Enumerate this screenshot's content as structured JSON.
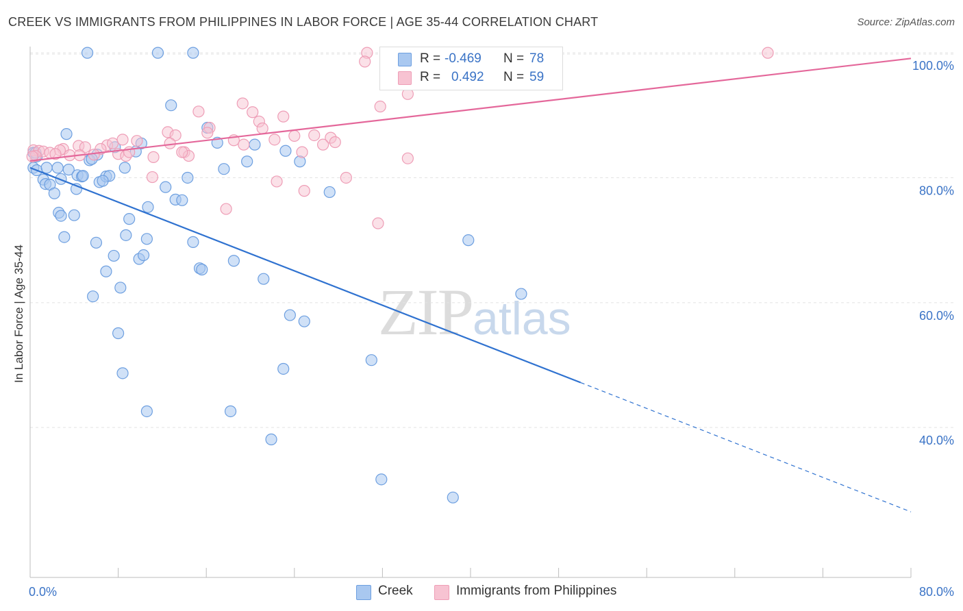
{
  "header": {
    "title": "CREEK VS IMMIGRANTS FROM PHILIPPINES IN LABOR FORCE | AGE 35-44 CORRELATION CHART",
    "source": "Source: ZipAtlas.com"
  },
  "watermark": {
    "zip": "ZIP",
    "atlas": "atlas"
  },
  "legend": {
    "creek": {
      "r_label": "R =",
      "r_value": "-0.469",
      "n_label": "N =",
      "n_value": "78"
    },
    "philippines": {
      "r_label": "R =",
      "r_value": "0.492",
      "n_label": "N =",
      "n_value": "59"
    }
  },
  "colors": {
    "creek_fill": "#a9c8f0",
    "creek_stroke": "#6d9fe0",
    "creek_line": "#2f72d0",
    "phil_fill": "#f7c3d2",
    "phil_stroke": "#ee9db6",
    "phil_line": "#e4679a",
    "axis_text": "#3a73c6",
    "grid": "#e3e3e3"
  },
  "chart_data": {
    "type": "scatter",
    "title": "CREEK VS IMMIGRANTS FROM PHILIPPINES IN LABOR FORCE | AGE 35-44 CORRELATION CHART",
    "xlabel": "",
    "ylabel": "In Labor Force | Age 35-44",
    "xlim": [
      0,
      80
    ],
    "ylim": [
      16,
      101
    ],
    "x_ticks": [
      0,
      80
    ],
    "x_tick_labels": [
      "0.0%",
      "80.0%"
    ],
    "y_ticks": [
      40,
      60,
      80,
      100
    ],
    "y_tick_labels": [
      "40.0%",
      "60.0%",
      "80.0%",
      "100.0%"
    ],
    "grid": true,
    "legend_position": "top-center",
    "series": [
      {
        "name": "Creek",
        "r": -0.469,
        "n": 78,
        "trend": {
          "x0": 0,
          "y0": 81.6,
          "x1": 50,
          "y1": 47.2,
          "x_dash_end": 80,
          "y_dash_end": 26.5
        },
        "points": [
          [
            5.2,
            100
          ],
          [
            11.6,
            100
          ],
          [
            14.8,
            100
          ],
          [
            12.8,
            91.6
          ],
          [
            3.3,
            87.0
          ],
          [
            0.3,
            84.0
          ],
          [
            0.6,
            83.4
          ],
          [
            0.3,
            81.6
          ],
          [
            0.6,
            81.2
          ],
          [
            1.5,
            81.6
          ],
          [
            3.5,
            81.3
          ],
          [
            2.5,
            81.6
          ],
          [
            4.3,
            80.4
          ],
          [
            4.7,
            80.2
          ],
          [
            2.8,
            79.8
          ],
          [
            1.2,
            79.7
          ],
          [
            1.4,
            79.0
          ],
          [
            1.8,
            78.9
          ],
          [
            2.2,
            77.5
          ],
          [
            4.2,
            78.2
          ],
          [
            6.3,
            79.3
          ],
          [
            6.9,
            80.2
          ],
          [
            7.2,
            80.3
          ],
          [
            6.6,
            79.5
          ],
          [
            8.6,
            81.6
          ],
          [
            10.1,
            85.5
          ],
          [
            7.7,
            84.9
          ],
          [
            9.6,
            84.2
          ],
          [
            6.1,
            83.7
          ],
          [
            5.4,
            82.8
          ],
          [
            5.6,
            83.0
          ],
          [
            14.3,
            80.0
          ],
          [
            12.3,
            78.5
          ],
          [
            13.2,
            76.5
          ],
          [
            13.8,
            76.4
          ],
          [
            10.7,
            75.3
          ],
          [
            17.0,
            85.6
          ],
          [
            16.1,
            88.0
          ],
          [
            17.6,
            81.4
          ],
          [
            19.7,
            82.6
          ],
          [
            20.4,
            85.3
          ],
          [
            23.2,
            84.3
          ],
          [
            24.5,
            82.6
          ],
          [
            27.2,
            77.7
          ],
          [
            4.0,
            74.0
          ],
          [
            2.6,
            74.4
          ],
          [
            2.8,
            73.9
          ],
          [
            9.0,
            73.4
          ],
          [
            8.7,
            70.8
          ],
          [
            10.6,
            70.2
          ],
          [
            3.1,
            70.5
          ],
          [
            6.0,
            69.6
          ],
          [
            7.6,
            67.5
          ],
          [
            9.9,
            67.0
          ],
          [
            10.3,
            67.6
          ],
          [
            14.8,
            69.7
          ],
          [
            15.4,
            65.5
          ],
          [
            15.6,
            65.3
          ],
          [
            18.5,
            66.7
          ],
          [
            21.2,
            63.8
          ],
          [
            6.9,
            65.0
          ],
          [
            8.2,
            62.4
          ],
          [
            5.7,
            61.0
          ],
          [
            39.8,
            70.0
          ],
          [
            44.6,
            61.4
          ],
          [
            23.6,
            58.0
          ],
          [
            24.9,
            57.0
          ],
          [
            8.0,
            55.1
          ],
          [
            31.0,
            50.8
          ],
          [
            23.0,
            49.4
          ],
          [
            8.4,
            48.7
          ],
          [
            10.6,
            42.6
          ],
          [
            18.2,
            42.6
          ],
          [
            21.9,
            38.1
          ],
          [
            31.9,
            31.7
          ],
          [
            38.4,
            28.8
          ],
          [
            0.5,
            84.0
          ],
          [
            4.8,
            80.3
          ]
        ]
      },
      {
        "name": "Immigrants from Philippines",
        "r": 0.492,
        "n": 59,
        "trend": {
          "x0": 0,
          "y0": 82.7,
          "x1": 80,
          "y1": 99.1
        },
        "points": [
          [
            30.6,
            100
          ],
          [
            30.4,
            98.6
          ],
          [
            47.8,
            100
          ],
          [
            67.0,
            100
          ],
          [
            34.3,
            93.4
          ],
          [
            19.3,
            91.9
          ],
          [
            31.8,
            91.4
          ],
          [
            15.3,
            90.6
          ],
          [
            20.2,
            90.5
          ],
          [
            23.0,
            89.8
          ],
          [
            20.8,
            89.0
          ],
          [
            21.1,
            87.9
          ],
          [
            16.3,
            88.0
          ],
          [
            12.5,
            87.3
          ],
          [
            13.2,
            86.8
          ],
          [
            16.1,
            87.2
          ],
          [
            24.0,
            86.7
          ],
          [
            25.8,
            86.8
          ],
          [
            27.3,
            86.4
          ],
          [
            22.2,
            86.1
          ],
          [
            18.5,
            86.0
          ],
          [
            19.4,
            85.3
          ],
          [
            26.6,
            85.3
          ],
          [
            27.7,
            85.7
          ],
          [
            7.0,
            85.2
          ],
          [
            7.5,
            85.5
          ],
          [
            8.4,
            86.1
          ],
          [
            9.7,
            85.9
          ],
          [
            4.4,
            85.1
          ],
          [
            5.0,
            84.9
          ],
          [
            6.4,
            84.6
          ],
          [
            3.0,
            84.6
          ],
          [
            2.7,
            84.4
          ],
          [
            0.3,
            84.4
          ],
          [
            0.8,
            84.3
          ],
          [
            1.2,
            84.2
          ],
          [
            1.8,
            84.0
          ],
          [
            2.3,
            83.8
          ],
          [
            3.6,
            83.6
          ],
          [
            4.5,
            83.6
          ],
          [
            0.5,
            83.5
          ],
          [
            8.0,
            83.8
          ],
          [
            8.7,
            83.5
          ],
          [
            9.0,
            84.1
          ],
          [
            12.7,
            85.5
          ],
          [
            14.0,
            84.1
          ],
          [
            14.4,
            83.5
          ],
          [
            13.8,
            84.1
          ],
          [
            11.2,
            83.3
          ],
          [
            24.7,
            84.1
          ],
          [
            34.3,
            83.1
          ],
          [
            28.7,
            80.0
          ],
          [
            11.1,
            80.1
          ],
          [
            22.4,
            79.4
          ],
          [
            24.9,
            77.9
          ],
          [
            17.8,
            75.0
          ],
          [
            31.6,
            72.7
          ],
          [
            0.2,
            83.4
          ],
          [
            5.8,
            83.7
          ]
        ]
      }
    ]
  }
}
